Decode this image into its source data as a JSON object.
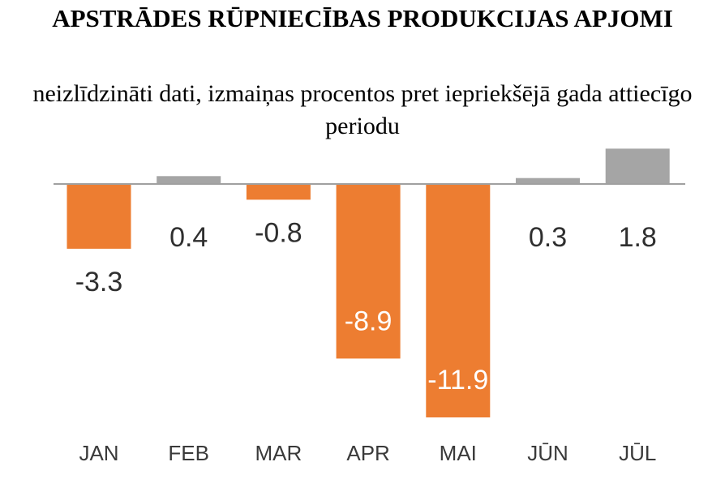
{
  "chart_data": {
    "type": "bar",
    "title": "APSTRĀDES RŪPNIECĪBAS PRODUKCIJAS APJOMI",
    "subtitle": "neizlīdzināti dati, izmaiņas procentos pret iepriekšējā gada attiecīgo periodu",
    "categories": [
      "JAN",
      "FEB",
      "MAR",
      "APR",
      "MAI",
      "JŪN",
      "JŪL"
    ],
    "values": [
      -3.3,
      0.4,
      -0.8,
      -8.9,
      -11.9,
      0.3,
      1.8
    ],
    "labels": [
      "-3.3",
      "0.4",
      "-0.8",
      "-8.9",
      "-11.9",
      "0.3",
      "1.8"
    ],
    "xlabel": "",
    "ylabel": "",
    "ylim": [
      -12,
      2
    ],
    "grid": false,
    "legend": "none",
    "colors": {
      "negative": "#ed7d31",
      "positive": "#a5a5a5",
      "baseline": "#a0a0a0",
      "label_dark": "#2f2f2f",
      "label_light": "#ffffff"
    }
  }
}
